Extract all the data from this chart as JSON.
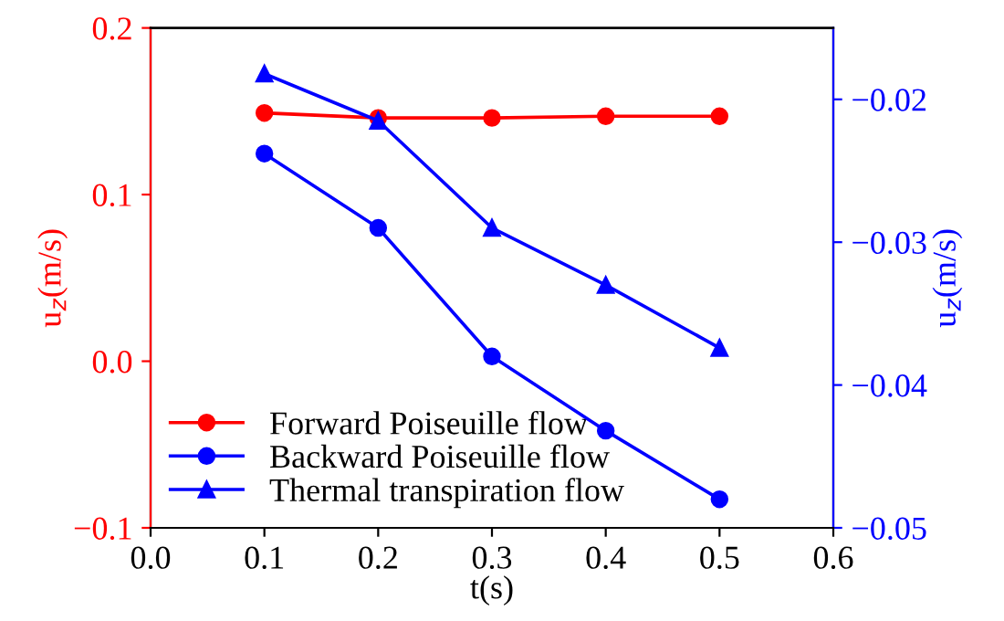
{
  "chart_data": {
    "type": "line",
    "xlabel": "t(s)",
    "ylabel": "u$_{z}$(m/s)",
    "y2label": "u$_{z}$(m/s)",
    "x": [
      0.1,
      0.2,
      0.3,
      0.4,
      0.5
    ],
    "series": [
      {
        "name": "Forward Poiseuille flow",
        "color": "#ff0000",
        "marker": "circle",
        "values": [
          0.149,
          0.146,
          0.146,
          0.147,
          0.147
        ]
      },
      {
        "name": "Backward Poiseuille flow",
        "color": "#0000ff",
        "marker": "circle",
        "axis": "y2",
        "values": [
          -0.0238,
          -0.029,
          -0.038,
          -0.0432,
          -0.048
        ]
      },
      {
        "name": "Thermal transpiration flow",
        "color": "#0000ff",
        "marker": "triangle",
        "axis": "y2",
        "values": [
          -0.0182,
          -0.0215,
          -0.029,
          -0.033,
          -0.0374
        ]
      }
    ],
    "xlim": [
      0.0,
      0.6
    ],
    "xticks": [
      {
        "value": 0.0,
        "label": "0.0"
      },
      0.1,
      0.2,
      0.3,
      0.4,
      0.5,
      0.6
    ],
    "ylim": [
      -0.1,
      0.2
    ],
    "yticks": [
      {
        "value": -0.1,
        "label": "−0.1"
      },
      {
        "value": 0.0,
        "label": "0.0"
      },
      0.1,
      0.2
    ],
    "y2lim": [
      -0.05,
      -0.015
    ],
    "y2ticks": [
      {
        "value": -0.05,
        "label": "−0.05"
      },
      {
        "value": -0.04,
        "label": "−0.04"
      },
      {
        "value": -0.03,
        "label": "−0.03"
      },
      {
        "value": -0.02,
        "label": "−0.02"
      }
    ],
    "legend": "bottom left",
    "grid": false
  }
}
